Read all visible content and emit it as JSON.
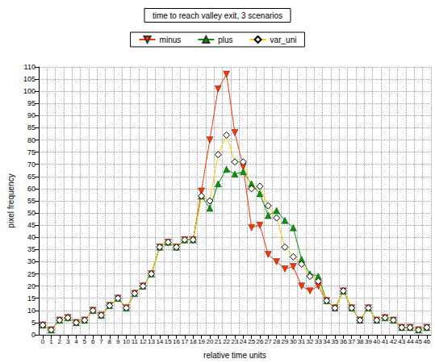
{
  "chart_data": {
    "type": "line",
    "title": "time to reach valley exit, 3 scenarios",
    "x_label": "relative time units",
    "y_label": "pixel frequency",
    "categories": [
      "0",
      "1",
      "2",
      "3",
      "4",
      "5",
      "6",
      "7",
      "8",
      "9",
      "10",
      "11",
      "12",
      "13",
      "14",
      "15",
      "16",
      "17",
      "18",
      "19",
      "20",
      "21",
      "22",
      "23",
      "24",
      "25",
      "26",
      "27",
      "28",
      "29",
      "30",
      "31",
      "32",
      "33",
      "34",
      "35",
      "36",
      "37",
      "38",
      "39",
      "40",
      "41",
      "42",
      "43",
      "44",
      "45",
      "46"
    ],
    "series": [
      {
        "name": "minus",
        "color": "#ff3300",
        "marker": "triangle-down",
        "values": [
          4,
          2,
          6,
          7,
          5,
          6,
          10,
          8,
          12,
          15,
          11,
          17,
          20,
          25,
          36,
          38,
          36,
          39,
          39,
          59,
          80,
          101,
          107,
          83,
          69,
          44,
          45,
          33,
          30,
          27,
          28,
          20,
          18,
          20,
          14,
          11,
          18,
          11,
          6,
          11,
          6,
          7,
          6,
          3,
          3,
          2,
          3
        ]
      },
      {
        "name": "plus",
        "color": "#009900",
        "marker": "triangle",
        "values": [
          4,
          2,
          6,
          7,
          5,
          6,
          10,
          8,
          12,
          15,
          11,
          17,
          20,
          25,
          36,
          38,
          36,
          39,
          39,
          57,
          52,
          62,
          68,
          66,
          67,
          62,
          58,
          49,
          51,
          47,
          44,
          31,
          25,
          24,
          14,
          11,
          18,
          11,
          6,
          11,
          6,
          7,
          6,
          3,
          3,
          2,
          3
        ]
      },
      {
        "name": "var_uni",
        "color": "#ffcc00",
        "marker": "diamond",
        "values": [
          4,
          2,
          6,
          7,
          5,
          6,
          10,
          8,
          12,
          15,
          11,
          17,
          20,
          25,
          36,
          38,
          36,
          39,
          39,
          57,
          55,
          74,
          82,
          71,
          71,
          60,
          61,
          53,
          48,
          36,
          32,
          29,
          24,
          22,
          14,
          11,
          18,
          11,
          6,
          11,
          6,
          7,
          6,
          3,
          3,
          2,
          3
        ]
      }
    ],
    "ylim": [
      0,
      110
    ],
    "yticks": [
      0,
      5,
      10,
      15,
      20,
      25,
      30,
      35,
      40,
      45,
      50,
      55,
      60,
      65,
      70,
      75,
      80,
      85,
      90,
      95,
      100,
      105,
      110
    ],
    "grid": true,
    "legend": "top"
  }
}
